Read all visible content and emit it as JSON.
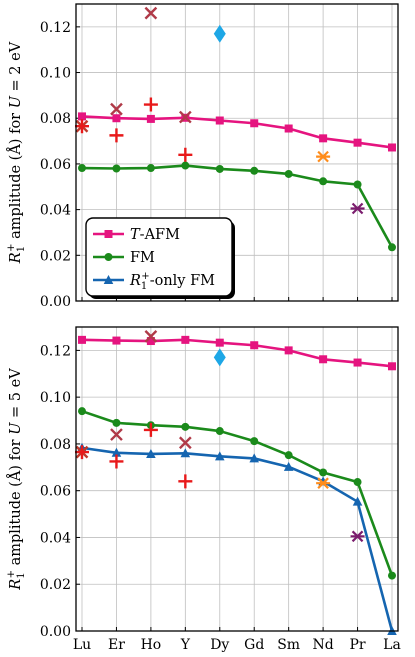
{
  "chart_data": [
    {
      "type": "line",
      "ylabel": "R1+ amplitude (Å) for U = 2 eV",
      "ylabel_parts": {
        "lead": "R",
        "sub": "1",
        "sup": "+",
        "mid": " amplitude (Å) for ",
        "var": "U",
        "tail": " = 2 eV"
      },
      "ylim": [
        0.0,
        0.13
      ],
      "yticks": [
        "0.00",
        "0.02",
        "0.04",
        "0.06",
        "0.08",
        "0.10",
        "0.12"
      ],
      "ytick_values": [
        0.0,
        0.02,
        0.04,
        0.06,
        0.08,
        0.1,
        0.12
      ],
      "categories": [
        "Lu",
        "Er",
        "Ho",
        "Y",
        "Dy",
        "Gd",
        "Sm",
        "Nd",
        "Pr",
        "La"
      ],
      "grid": true,
      "legend_position": "lower-left",
      "series": [
        {
          "name": "T-AFM",
          "label_var": "T",
          "label_rest": "-AFM",
          "color": "#e5147f",
          "marker": "square",
          "values": [
            0.0808,
            0.08,
            0.0797,
            0.0802,
            0.079,
            0.0778,
            0.0755,
            0.0712,
            0.0693,
            0.0672
          ]
        },
        {
          "name": "FM",
          "label_rest": "FM",
          "color": "#1b8a1b",
          "marker": "circle",
          "values": [
            0.0582,
            0.058,
            0.0582,
            0.0593,
            0.0578,
            0.057,
            0.0556,
            0.0524,
            0.051,
            0.0235
          ]
        }
      ],
      "reference_points": [
        {
          "category": "Lu",
          "value": 0.0765,
          "marker": "x",
          "color": "#c0392b"
        },
        {
          "category": "Lu",
          "value": 0.0765,
          "marker": "plus",
          "color": "#e8191a"
        },
        {
          "category": "Er",
          "value": 0.084,
          "marker": "x",
          "color": "#b03a48"
        },
        {
          "category": "Er",
          "value": 0.0725,
          "marker": "plus",
          "color": "#e8191a"
        },
        {
          "category": "Ho",
          "value": 0.126,
          "marker": "x",
          "color": "#b03a48"
        },
        {
          "category": "Ho",
          "value": 0.086,
          "marker": "plus",
          "color": "#e8191a"
        },
        {
          "category": "Y",
          "value": 0.0805,
          "marker": "x",
          "color": "#b03a48"
        },
        {
          "category": "Y",
          "value": 0.064,
          "marker": "plus",
          "color": "#e8191a"
        },
        {
          "category": "Dy",
          "value": 0.117,
          "marker": "diamond",
          "color": "#1ea7e6"
        },
        {
          "category": "Nd",
          "value": 0.0632,
          "marker": "star",
          "color": "#ff8c1a"
        },
        {
          "category": "Pr",
          "value": 0.0405,
          "marker": "star",
          "color": "#7b1d6e"
        }
      ],
      "legend": [
        {
          "label_var": "T",
          "label_rest": "-AFM",
          "color": "#e5147f",
          "marker": "square"
        },
        {
          "label_rest": "FM",
          "color": "#1b8a1b",
          "marker": "circle"
        },
        {
          "label_main": "R",
          "label_sub": "1",
          "label_sup": "+",
          "label_rest": "-only FM",
          "color": "#1565b0",
          "marker": "triangle"
        }
      ]
    },
    {
      "type": "line",
      "ylabel": "R1+ amplitude (Å) for U = 5 eV",
      "ylabel_parts": {
        "lead": "R",
        "sub": "1",
        "sup": "+",
        "mid": " amplitude (Å) for ",
        "var": "U",
        "tail": " = 5 eV"
      },
      "ylim": [
        0.0,
        0.13
      ],
      "yticks": [
        "0.00",
        "0.02",
        "0.04",
        "0.06",
        "0.08",
        "0.10",
        "0.12"
      ],
      "ytick_values": [
        0.0,
        0.02,
        0.04,
        0.06,
        0.08,
        0.1,
        0.12
      ],
      "categories": [
        "Lu",
        "Er",
        "Ho",
        "Y",
        "Dy",
        "Gd",
        "Sm",
        "Nd",
        "Pr",
        "La"
      ],
      "xticks": [
        "Lu",
        "Er",
        "Ho",
        "Y",
        "Dy",
        "Gd",
        "Sm",
        "Nd",
        "Pr",
        "La"
      ],
      "grid": true,
      "series": [
        {
          "name": "T-AFM",
          "color": "#e5147f",
          "marker": "square",
          "values": [
            0.1245,
            0.1242,
            0.124,
            0.1245,
            0.1233,
            0.1222,
            0.12,
            0.1162,
            0.1148,
            0.1132
          ]
        },
        {
          "name": "FM",
          "color": "#1b8a1b",
          "marker": "circle",
          "values": [
            0.094,
            0.089,
            0.088,
            0.0873,
            0.0855,
            0.0812,
            0.0752,
            0.0678,
            0.0637,
            0.0237
          ]
        },
        {
          "name": "R1+-only FM",
          "color": "#1565b0",
          "marker": "triangle",
          "values": [
            0.0783,
            0.0762,
            0.0757,
            0.076,
            0.0747,
            0.0738,
            0.0702,
            0.064,
            0.0553,
            0.0
          ]
        }
      ],
      "reference_points": [
        {
          "category": "Lu",
          "value": 0.0765,
          "marker": "x",
          "color": "#c0392b"
        },
        {
          "category": "Lu",
          "value": 0.0765,
          "marker": "plus",
          "color": "#e8191a"
        },
        {
          "category": "Er",
          "value": 0.084,
          "marker": "x",
          "color": "#b03a48"
        },
        {
          "category": "Er",
          "value": 0.0725,
          "marker": "plus",
          "color": "#e8191a"
        },
        {
          "category": "Ho",
          "value": 0.126,
          "marker": "x",
          "color": "#b03a48"
        },
        {
          "category": "Ho",
          "value": 0.086,
          "marker": "plus",
          "color": "#e8191a"
        },
        {
          "category": "Y",
          "value": 0.0805,
          "marker": "x",
          "color": "#b03a48"
        },
        {
          "category": "Y",
          "value": 0.064,
          "marker": "plus",
          "color": "#e8191a"
        },
        {
          "category": "Dy",
          "value": 0.117,
          "marker": "diamond",
          "color": "#1ea7e6"
        },
        {
          "category": "Nd",
          "value": 0.0632,
          "marker": "star",
          "color": "#ff8c1a"
        },
        {
          "category": "Pr",
          "value": 0.0405,
          "marker": "star",
          "color": "#7b1d6e"
        }
      ]
    }
  ]
}
